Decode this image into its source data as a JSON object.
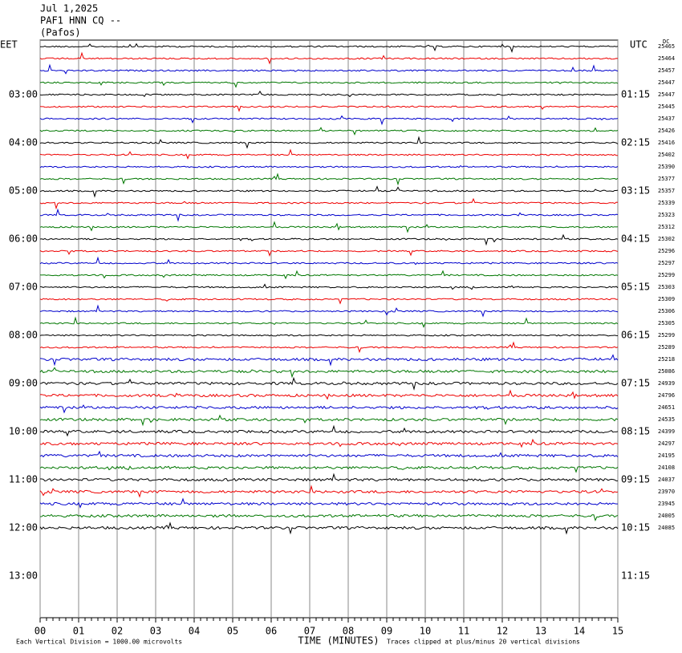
{
  "header": {
    "date": "Jul 1,2025",
    "station": "PAF1 HNN CQ --",
    "location": "(Pafos)"
  },
  "left_axis": {
    "label": "EET",
    "ticks": [
      "03:00",
      "04:00",
      "05:00",
      "06:00",
      "07:00",
      "08:00",
      "09:00",
      "10:00",
      "11:00",
      "12:00",
      "13:00"
    ]
  },
  "right_axis": {
    "label": "UTC",
    "ticks": [
      "01:15",
      "02:15",
      "03:15",
      "04:15",
      "05:15",
      "06:15",
      "07:15",
      "08:15",
      "09:15",
      "10:15",
      "11:15"
    ]
  },
  "dc": {
    "label": "DC",
    "values": [
      25465,
      25464,
      25457,
      25447,
      25447,
      25445,
      25437,
      25426,
      25416,
      25402,
      25390,
      25377,
      25357,
      25339,
      25323,
      25312,
      25302,
      25296,
      25297,
      25299,
      25303,
      25309,
      25306,
      25305,
      25299,
      25289,
      25218,
      25086,
      24939,
      24796,
      24651,
      24535,
      24399,
      24297,
      24195,
      24108,
      24037,
      23970,
      23945,
      24005,
      24085
    ]
  },
  "x_axis": {
    "title": "TIME (MINUTES)",
    "ticks": [
      "00",
      "01",
      "02",
      "03",
      "04",
      "05",
      "06",
      "07",
      "08",
      "09",
      "10",
      "11",
      "12",
      "13",
      "14",
      "15"
    ]
  },
  "footer": {
    "scale_note": "Each Vertical Division = 1000.00 microvolts",
    "clip_note": "Traces clipped at plus/minus 20 vertical divisions"
  }
}
